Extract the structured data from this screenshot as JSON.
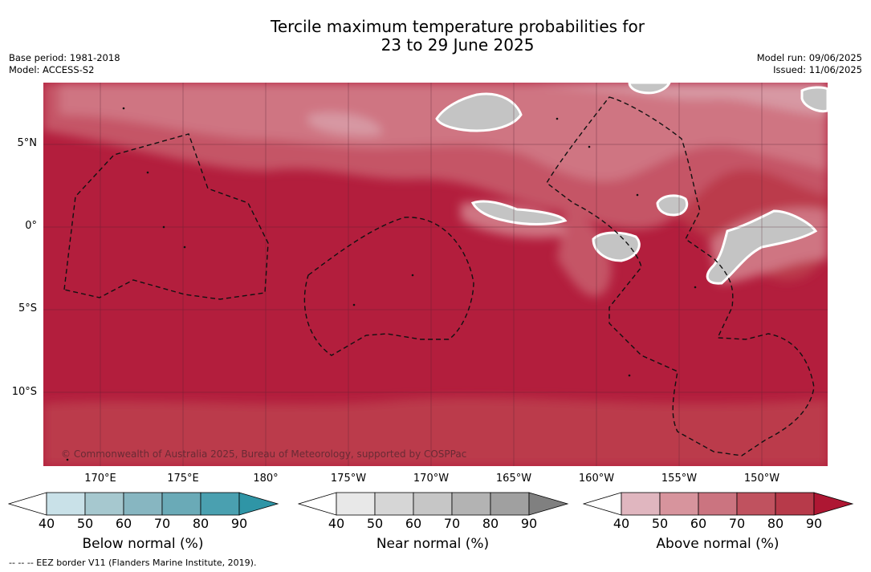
{
  "title": {
    "line1": "Tercile maximum temperature probabilities for",
    "line2": "23 to 29 June 2025"
  },
  "meta_left": {
    "base_period": "Base period: 1981-2018",
    "model": "Model: ACCESS-S2"
  },
  "meta_right": {
    "model_run": "Model run: 09/06/2025",
    "issued": "Issued: 11/06/2025"
  },
  "map": {
    "lat_labels": [
      "5°N",
      "0°",
      "5°S",
      "10°S"
    ],
    "lon_labels": [
      "170°E",
      "175°E",
      "180°",
      "175°W",
      "170°W",
      "165°W",
      "160°W",
      "155°W",
      "150°W"
    ],
    "copyright": "© Commonwealth of Australia 2025, Bureau of Meteorology, supported by COSPPac"
  },
  "colorbars": [
    {
      "name": "Below normal (%)",
      "ticks": [
        "40",
        "50",
        "60",
        "70",
        "80",
        "90"
      ],
      "colors": [
        "#ffffff",
        "#c9e1e8",
        "#a6c8cf",
        "#87b6c1",
        "#6aaab7",
        "#4aa0b0",
        "#2f95a6"
      ]
    },
    {
      "name": "Near normal (%)",
      "ticks": [
        "40",
        "50",
        "60",
        "70",
        "80",
        "90"
      ],
      "colors": [
        "#ffffff",
        "#e8e8e8",
        "#d6d6d6",
        "#c6c6c6",
        "#b3b3b3",
        "#a0a0a0",
        "#808080"
      ]
    },
    {
      "name": "Above normal (%)",
      "ticks": [
        "40",
        "50",
        "60",
        "70",
        "80",
        "90"
      ],
      "colors": [
        "#ffffff",
        "#e0b6bf",
        "#d7949d",
        "#cb7480",
        "#c0525f",
        "#b73a4a",
        "#ae1733"
      ]
    }
  ],
  "footnote": "--  --  -- EEZ border V11 (Flanders Marine Institute, 2019)."
}
